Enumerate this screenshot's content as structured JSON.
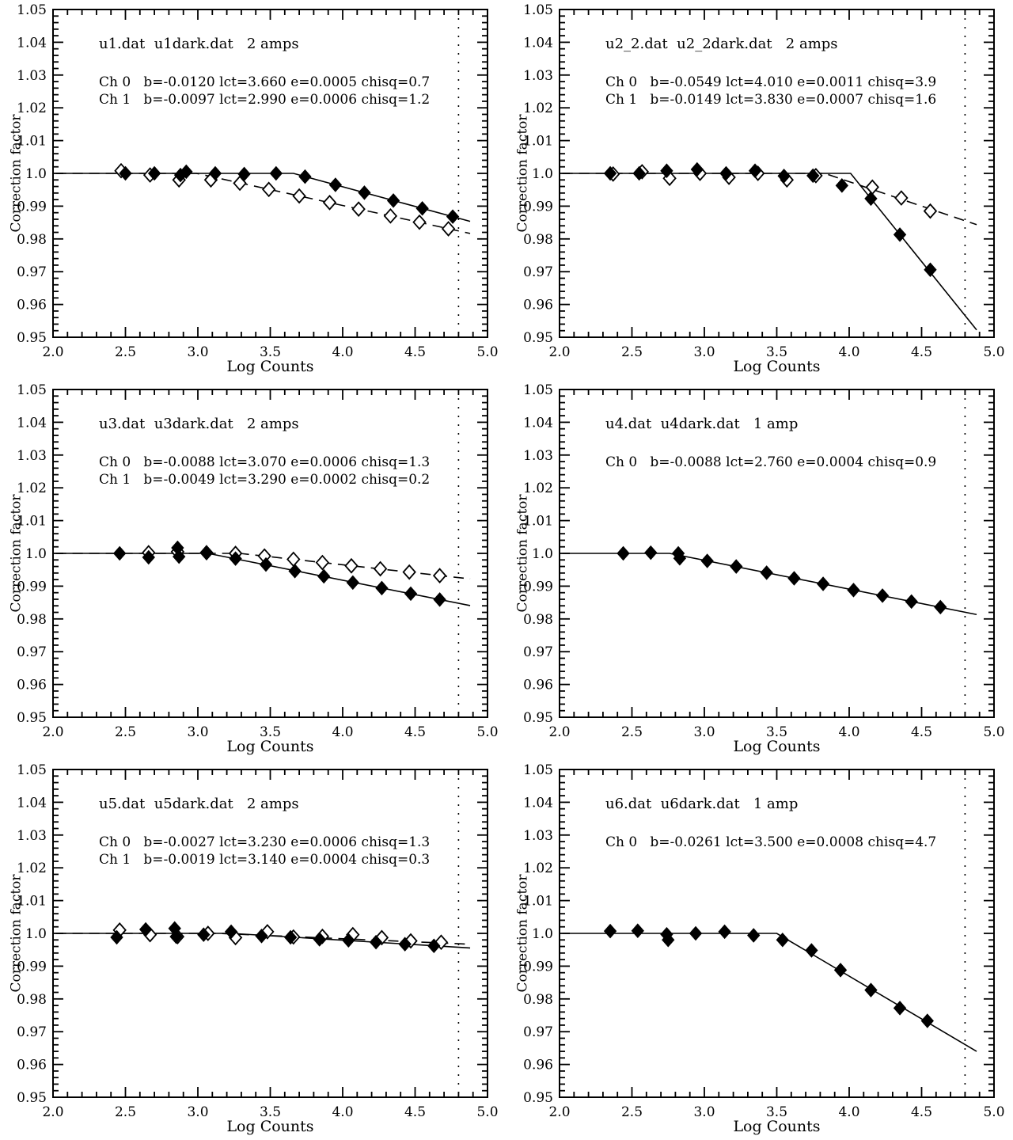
{
  "page": {
    "background": "#ffffff",
    "ink": "#000000",
    "description": "Six-panel linearity correction plots: correction factor vs log counts with piecewise-linear fits"
  },
  "axis": {
    "xlabel": "Log Counts",
    "ylabel": "Correction factor",
    "xlim": [
      2.0,
      5.0
    ],
    "ylim": [
      0.95,
      1.05
    ],
    "x_tick_labels": [
      "2.0",
      "2.5",
      "3.0",
      "3.5",
      "4.0",
      "4.5",
      "5.0"
    ],
    "x_tick_values": [
      2.0,
      2.5,
      3.0,
      3.5,
      4.0,
      4.5,
      5.0
    ],
    "x_minor_step": 0.1,
    "y_tick_labels": [
      "1.05",
      "1.04",
      "1.03",
      "1.02",
      "1.01",
      "1.0",
      "0.99",
      "0.98",
      "0.97",
      "0.96",
      "0.95"
    ],
    "y_tick_values": [
      1.05,
      1.04,
      1.03,
      1.02,
      1.01,
      1.0,
      0.99,
      0.98,
      0.97,
      0.96,
      0.95
    ],
    "y_minor_step": 0.002,
    "guide_line_x": 4.8,
    "fit_x_start": 2.02,
    "fit_x_end": 4.88,
    "grid": false
  },
  "chart_data": [
    {
      "type": "scatter",
      "title": "u1.dat  u1dark.dat   2 amps",
      "fit_lines": [
        {
          "channel": "Ch 0",
          "b": -0.012,
          "lct": 3.66,
          "e": 0.0005,
          "chisq": 0.7,
          "line": "solid",
          "label": "Ch 0   b=-0.0120 lct=3.660 e=0.0005 chisq=0.7"
        },
        {
          "channel": "Ch 1",
          "b": -0.0097,
          "lct": 2.99,
          "e": 0.0006,
          "chisq": 1.2,
          "line": "dashed",
          "label": "Ch 1   b=-0.0097 lct=2.990 e=0.0006 chisq=1.2"
        }
      ],
      "series": [
        {
          "name": "Ch 0",
          "marker": "filled-diamond",
          "points": [
            [
              2.5,
              1.0
            ],
            [
              2.7,
              1.0
            ],
            [
              2.88,
              0.9995
            ],
            [
              2.92,
              1.0005
            ],
            [
              3.12,
              1.0
            ],
            [
              3.32,
              0.9998
            ],
            [
              3.54,
              1.0
            ],
            [
              3.74,
              0.999
            ],
            [
              3.95,
              0.9965
            ],
            [
              4.15,
              0.9941
            ],
            [
              4.35,
              0.9917
            ],
            [
              4.55,
              0.9893
            ],
            [
              4.76,
              0.9868
            ]
          ]
        },
        {
          "name": "Ch 1",
          "marker": "open-diamond",
          "points": [
            [
              2.47,
              1.0008
            ],
            [
              2.67,
              0.9995
            ],
            [
              2.87,
              0.998
            ],
            [
              3.09,
              0.998
            ],
            [
              3.29,
              0.997
            ],
            [
              3.49,
              0.9951
            ],
            [
              3.7,
              0.9931
            ],
            [
              3.91,
              0.9911
            ],
            [
              4.11,
              0.9891
            ],
            [
              4.33,
              0.987
            ],
            [
              4.53,
              0.9851
            ],
            [
              4.73,
              0.9831
            ]
          ]
        }
      ]
    },
    {
      "type": "scatter",
      "title": "u2_2.dat  u2_2dark.dat   2 amps",
      "fit_lines": [
        {
          "channel": "Ch 0",
          "b": -0.0549,
          "lct": 4.01,
          "e": 0.0011,
          "chisq": 3.9,
          "line": "solid",
          "label": "Ch 0   b=-0.0549 lct=4.010 e=0.0011 chisq=3.9"
        },
        {
          "channel": "Ch 1",
          "b": -0.0149,
          "lct": 3.83,
          "e": 0.0007,
          "chisq": 1.6,
          "line": "dashed",
          "label": "Ch 1   b=-0.0149 lct=3.830 e=0.0007 chisq=1.6"
        }
      ],
      "series": [
        {
          "name": "Ch 0",
          "marker": "filled-diamond",
          "points": [
            [
              2.35,
              1.0
            ],
            [
              2.55,
              1.0
            ],
            [
              2.74,
              1.0008
            ],
            [
              2.95,
              1.0012
            ],
            [
              3.15,
              1.0
            ],
            [
              3.35,
              1.0008
            ],
            [
              3.55,
              0.9992
            ],
            [
              3.75,
              0.9993
            ],
            [
              3.95,
              0.9963
            ],
            [
              4.15,
              0.9923
            ],
            [
              4.35,
              0.9813
            ],
            [
              4.56,
              0.9706
            ]
          ]
        },
        {
          "name": "Ch 1",
          "marker": "open-diamond",
          "points": [
            [
              2.37,
              0.9998
            ],
            [
              2.57,
              1.0005
            ],
            [
              2.76,
              0.9985
            ],
            [
              2.97,
              1.0
            ],
            [
              3.17,
              0.9988
            ],
            [
              3.37,
              1.0
            ],
            [
              3.57,
              0.998
            ],
            [
              3.77,
              0.9993
            ],
            [
              4.16,
              0.9958
            ],
            [
              4.36,
              0.9925
            ],
            [
              4.56,
              0.9885
            ]
          ]
        }
      ]
    },
    {
      "type": "scatter",
      "title": "u3.dat  u3dark.dat   2 amps",
      "fit_lines": [
        {
          "channel": "Ch 0",
          "b": -0.0088,
          "lct": 3.07,
          "e": 0.0006,
          "chisq": 1.3,
          "line": "solid",
          "label": "Ch 0   b=-0.0088 lct=3.070 e=0.0006 chisq=1.3"
        },
        {
          "channel": "Ch 1",
          "b": -0.0049,
          "lct": 3.29,
          "e": 0.0002,
          "chisq": 0.2,
          "line": "dashed",
          "label": "Ch 1   b=-0.0049 lct=3.290 e=0.0002 chisq=0.2"
        }
      ],
      "series": [
        {
          "name": "Ch 0",
          "marker": "filled-diamond",
          "points": [
            [
              2.46,
              1.0
            ],
            [
              2.66,
              0.9988
            ],
            [
              2.86,
              1.0017
            ],
            [
              2.87,
              0.999
            ],
            [
              3.06,
              1.0002
            ],
            [
              3.26,
              0.9984
            ],
            [
              3.47,
              0.9966
            ],
            [
              3.67,
              0.9946
            ],
            [
              3.87,
              0.993
            ],
            [
              4.07,
              0.9911
            ],
            [
              4.27,
              0.9894
            ],
            [
              4.47,
              0.9877
            ],
            [
              4.67,
              0.9859
            ]
          ]
        },
        {
          "name": "Ch 1",
          "marker": "open-diamond",
          "points": [
            [
              2.66,
              1.0002
            ],
            [
              2.86,
              1.0005
            ],
            [
              3.06,
              1.0002
            ],
            [
              3.26,
              1.0
            ],
            [
              3.46,
              0.9992
            ],
            [
              3.66,
              0.9982
            ],
            [
              3.86,
              0.9972
            ],
            [
              4.06,
              0.9962
            ],
            [
              4.26,
              0.9953
            ],
            [
              4.46,
              0.9943
            ],
            [
              4.67,
              0.9932
            ]
          ]
        }
      ]
    },
    {
      "type": "scatter",
      "title": "u4.dat  u4dark.dat   1 amp",
      "fit_lines": [
        {
          "channel": "Ch 0",
          "b": -0.0088,
          "lct": 2.76,
          "e": 0.0004,
          "chisq": 0.9,
          "line": "solid",
          "label": "Ch 0   b=-0.0088 lct=2.760 e=0.0004 chisq=0.9"
        }
      ],
      "series": [
        {
          "name": "Ch 0",
          "marker": "filled-diamond",
          "points": [
            [
              2.44,
              1.0
            ],
            [
              2.63,
              1.0002
            ],
            [
              2.82,
              1.0
            ],
            [
              2.83,
              0.9985
            ],
            [
              3.02,
              0.9977
            ],
            [
              3.22,
              0.996
            ],
            [
              3.43,
              0.9941
            ],
            [
              3.62,
              0.9924
            ],
            [
              3.82,
              0.9907
            ],
            [
              4.03,
              0.9888
            ],
            [
              4.23,
              0.9871
            ],
            [
              4.43,
              0.9853
            ],
            [
              4.63,
              0.9836
            ]
          ]
        }
      ]
    },
    {
      "type": "scatter",
      "title": "u5.dat  u5dark.dat   2 amps",
      "fit_lines": [
        {
          "channel": "Ch 0",
          "b": -0.0027,
          "lct": 3.23,
          "e": 0.0006,
          "chisq": 1.3,
          "line": "solid",
          "label": "Ch 0   b=-0.0027 lct=3.230 e=0.0006 chisq=1.3"
        },
        {
          "channel": "Ch 1",
          "b": -0.0019,
          "lct": 3.14,
          "e": 0.0004,
          "chisq": 0.3,
          "line": "dashed",
          "label": "Ch 1   b=-0.0019 lct=3.140 e=0.0004 chisq=0.3"
        }
      ],
      "series": [
        {
          "name": "Ch 0",
          "marker": "filled-diamond",
          "points": [
            [
              2.44,
              0.9988
            ],
            [
              2.64,
              1.0012
            ],
            [
              2.84,
              1.0015
            ],
            [
              2.85,
              0.999
            ],
            [
              3.04,
              0.9996
            ],
            [
              3.23,
              1.0005
            ],
            [
              3.44,
              0.9992
            ],
            [
              3.64,
              0.9988
            ],
            [
              3.84,
              0.9982
            ],
            [
              4.04,
              0.9979
            ],
            [
              4.23,
              0.9973
            ],
            [
              4.43,
              0.9967
            ],
            [
              4.63,
              0.9962
            ]
          ]
        },
        {
          "name": "Ch 1",
          "marker": "open-diamond",
          "points": [
            [
              2.46,
              1.001
            ],
            [
              2.67,
              0.9996
            ],
            [
              2.86,
              0.999
            ],
            [
              3.07,
              1.0
            ],
            [
              3.26,
              0.9987
            ],
            [
              3.48,
              1.0005
            ],
            [
              3.66,
              0.9989
            ],
            [
              3.86,
              0.9991
            ],
            [
              4.07,
              0.9996
            ],
            [
              4.27,
              0.9987
            ],
            [
              4.47,
              0.9977
            ],
            [
              4.68,
              0.9973
            ]
          ]
        }
      ]
    },
    {
      "type": "scatter",
      "title": "u6.dat  u6dark.dat   1 amp",
      "fit_lines": [
        {
          "channel": "Ch 0",
          "b": -0.0261,
          "lct": 3.5,
          "e": 0.0008,
          "chisq": 4.7,
          "line": "solid",
          "label": "Ch 0   b=-0.0261 lct=3.500 e=0.0008 chisq=4.7"
        }
      ],
      "series": [
        {
          "name": "Ch 0",
          "marker": "filled-diamond",
          "points": [
            [
              2.35,
              1.0007
            ],
            [
              2.54,
              1.0008
            ],
            [
              2.74,
              0.9997
            ],
            [
              2.75,
              0.998
            ],
            [
              2.94,
              1.0
            ],
            [
              3.14,
              1.0005
            ],
            [
              3.34,
              0.9994
            ],
            [
              3.54,
              0.998
            ],
            [
              3.74,
              0.9948
            ],
            [
              3.94,
              0.9888
            ],
            [
              4.15,
              0.9827
            ],
            [
              4.35,
              0.9772
            ],
            [
              4.54,
              0.9733
            ]
          ]
        }
      ]
    }
  ]
}
